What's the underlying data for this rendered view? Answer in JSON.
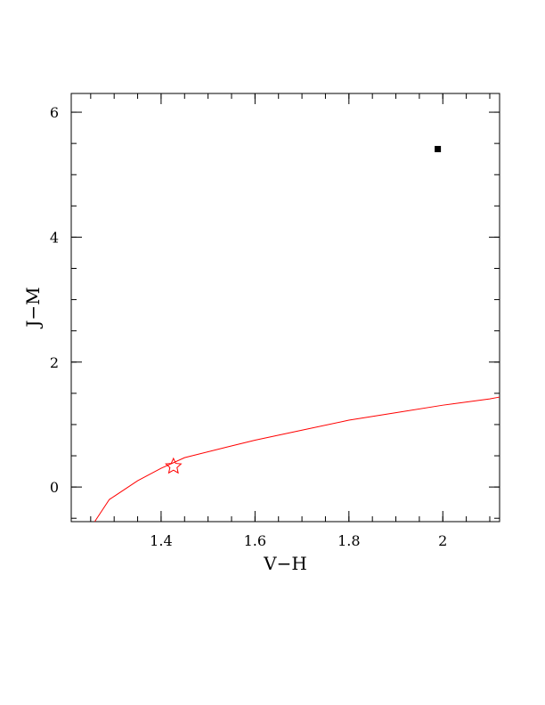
{
  "chart_data": {
    "type": "scatter",
    "xlabel": "V−H",
    "ylabel": "J−M",
    "xlim": [
      1.2086,
      2.1209
    ],
    "ylim": [
      -0.554,
      6.3
    ],
    "xticks": [
      {
        "value": 1.4,
        "label": "1.4"
      },
      {
        "value": 1.6,
        "label": "1.6"
      },
      {
        "value": 1.8,
        "label": "1.8"
      },
      {
        "value": 2.0,
        "label": "2"
      }
    ],
    "yticks": [
      {
        "value": 0,
        "label": "0"
      },
      {
        "value": 2,
        "label": "2"
      },
      {
        "value": 4,
        "label": "4"
      },
      {
        "value": 6,
        "label": "6"
      }
    ],
    "x_minor_step": 0.05,
    "y_minor_step": 0.5,
    "colors": {
      "curve": "#ff0000",
      "star": "#ff0000",
      "point": "#000000",
      "frame": "#000000"
    },
    "series": [
      {
        "kind": "line",
        "color": "#ff0000",
        "points": [
          {
            "x": 1.2586,
            "y": -0.554
          },
          {
            "x": 1.2897,
            "y": -0.2
          },
          {
            "x": 1.35,
            "y": 0.1
          },
          {
            "x": 1.4,
            "y": 0.3
          },
          {
            "x": 1.45,
            "y": 0.47
          },
          {
            "x": 1.54,
            "y": 0.64
          },
          {
            "x": 1.6,
            "y": 0.75
          },
          {
            "x": 1.7,
            "y": 0.91
          },
          {
            "x": 1.8,
            "y": 1.07
          },
          {
            "x": 1.9,
            "y": 1.19
          },
          {
            "x": 2.0,
            "y": 1.31
          },
          {
            "x": 2.1,
            "y": 1.41
          },
          {
            "x": 2.1209,
            "y": 1.44
          }
        ]
      },
      {
        "kind": "marker",
        "marker": "star",
        "color": "#ff0000",
        "points": [
          {
            "x": 1.4263,
            "y": 0.33
          }
        ]
      },
      {
        "kind": "marker",
        "marker": "square",
        "color": "#000000",
        "points": [
          {
            "x": 1.9893,
            "y": 5.41
          }
        ]
      }
    ]
  }
}
